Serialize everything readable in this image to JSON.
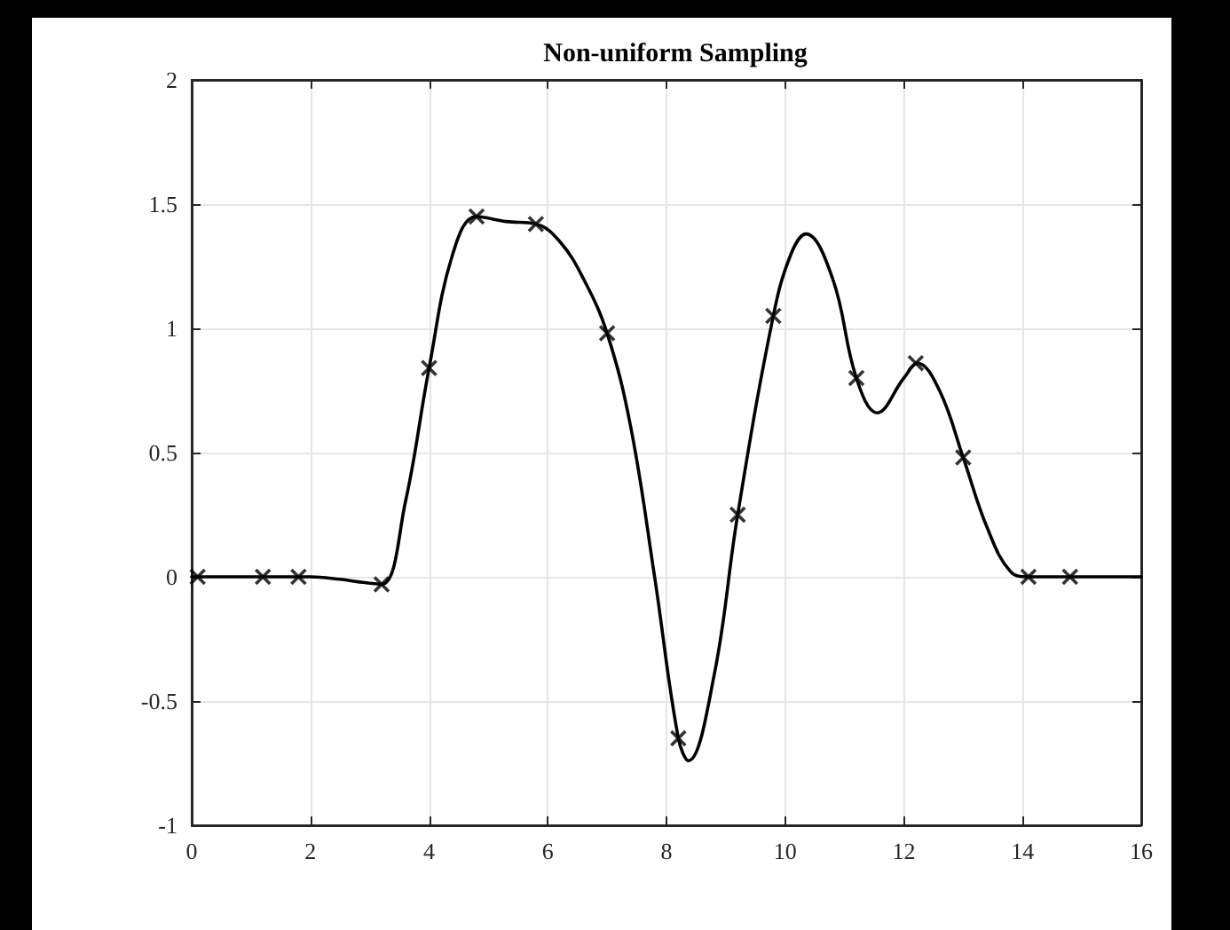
{
  "chart_data": {
    "type": "line",
    "title": "Non-uniform Sampling",
    "xlim": [
      0,
      16
    ],
    "xticks": [
      0,
      2,
      4,
      6,
      8,
      10,
      12,
      14,
      16
    ],
    "ylim": [
      -1,
      2
    ],
    "yticks": [
      -1,
      -0.5,
      0,
      0.5,
      1,
      1.5,
      2
    ],
    "grid": true,
    "series": [
      {
        "color": "#000000",
        "marker": "none",
        "line_style": "solid",
        "x": [
          0,
          1,
          2,
          2.5,
          2.8,
          3.2,
          3.6,
          4.0,
          4.4,
          4.8,
          5.3,
          5.8,
          6.2,
          6.6,
          7.0,
          7.4,
          7.8,
          8.2,
          8.37,
          8.8,
          9.2,
          9.8,
          10.1,
          10.35,
          10.8,
          11.2,
          11.55,
          12.0,
          12.23,
          12.6,
          13.0,
          13.4,
          13.8,
          14.1,
          15,
          16
        ],
        "values": [
          0,
          0,
          0,
          -0.01,
          -0.02,
          -0.03,
          0.3,
          0.84,
          1.3,
          1.45,
          1.43,
          1.42,
          1.35,
          1.2,
          0.98,
          0.6,
          0.0,
          -0.65,
          -0.74,
          -0.4,
          0.25,
          1.05,
          1.3,
          1.38,
          1.2,
          0.8,
          0.66,
          0.8,
          0.86,
          0.75,
          0.48,
          0.2,
          0.02,
          0,
          0,
          0
        ]
      },
      {
        "type": "scatter",
        "color": "#000000",
        "marker": "cross",
        "x": [
          0.1,
          1.2,
          1.8,
          3.2,
          4.0,
          4.8,
          5.8,
          7.0,
          8.2,
          9.2,
          9.8,
          11.2,
          12.2,
          13.0,
          14.1,
          14.8
        ],
        "values": [
          0,
          0,
          0,
          -0.03,
          0.84,
          1.45,
          1.42,
          0.98,
          -0.65,
          0.25,
          1.05,
          0.8,
          0.86,
          0.48,
          0,
          0
        ]
      }
    ]
  }
}
